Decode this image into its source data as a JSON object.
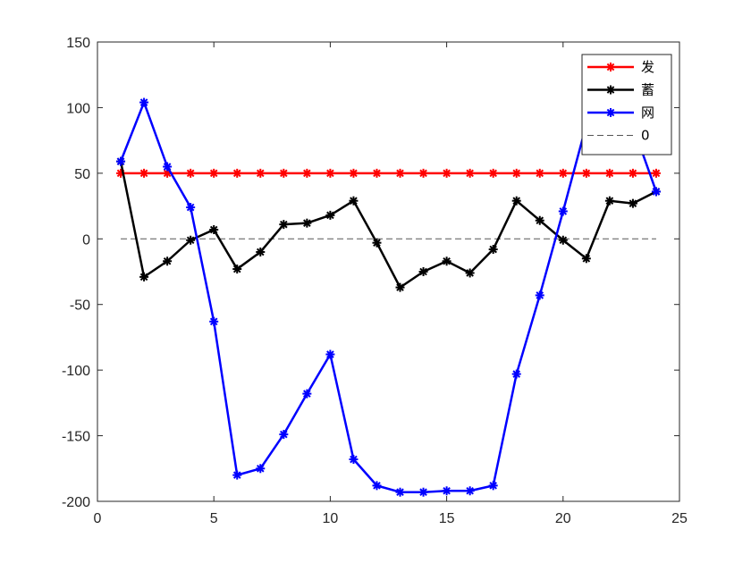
{
  "chart_data": {
    "type": "line",
    "title": "",
    "xlabel": "",
    "ylabel": "",
    "xlim": [
      0,
      25
    ],
    "ylim": [
      -200,
      150
    ],
    "xticks": [
      0,
      5,
      10,
      15,
      20,
      25
    ],
    "yticks": [
      -200,
      -150,
      -100,
      -50,
      0,
      50,
      100,
      150
    ],
    "grid": false,
    "legend_position": "top-right",
    "x": [
      1,
      2,
      3,
      4,
      5,
      6,
      7,
      8,
      9,
      10,
      11,
      12,
      13,
      14,
      15,
      16,
      17,
      18,
      19,
      20,
      21,
      22,
      23,
      24
    ],
    "series": [
      {
        "name": "发",
        "color": "#ff0000",
        "marker": "asterisk",
        "line": "solid",
        "values": [
          50,
          50,
          50,
          50,
          50,
          50,
          50,
          50,
          50,
          50,
          50,
          50,
          50,
          50,
          50,
          50,
          50,
          50,
          50,
          50,
          50,
          50,
          50,
          50
        ]
      },
      {
        "name": "蓄",
        "color": "#000000",
        "marker": "asterisk",
        "line": "solid",
        "values": [
          59,
          -29,
          -17,
          -1,
          7,
          -23,
          -10,
          11,
          12,
          18,
          29,
          -3,
          -37,
          -25,
          -17,
          -26,
          -8,
          29,
          14,
          -1,
          -15,
          29,
          27,
          36
        ]
      },
      {
        "name": "网",
        "color": "#0000ff",
        "marker": "asterisk",
        "line": "solid",
        "values": [
          59,
          104,
          55,
          24,
          -63,
          -180,
          -175,
          -149,
          -118,
          -88,
          -168,
          -188,
          -193,
          -193,
          -192,
          -192,
          -188,
          -103,
          -43,
          21,
          87,
          71,
          86,
          36
        ]
      },
      {
        "name": "0",
        "color": "#555555",
        "marker": "none",
        "line": "dashed",
        "values": [
          0,
          0,
          0,
          0,
          0,
          0,
          0,
          0,
          0,
          0,
          0,
          0,
          0,
          0,
          0,
          0,
          0,
          0,
          0,
          0,
          0,
          0,
          0,
          0
        ]
      }
    ]
  }
}
